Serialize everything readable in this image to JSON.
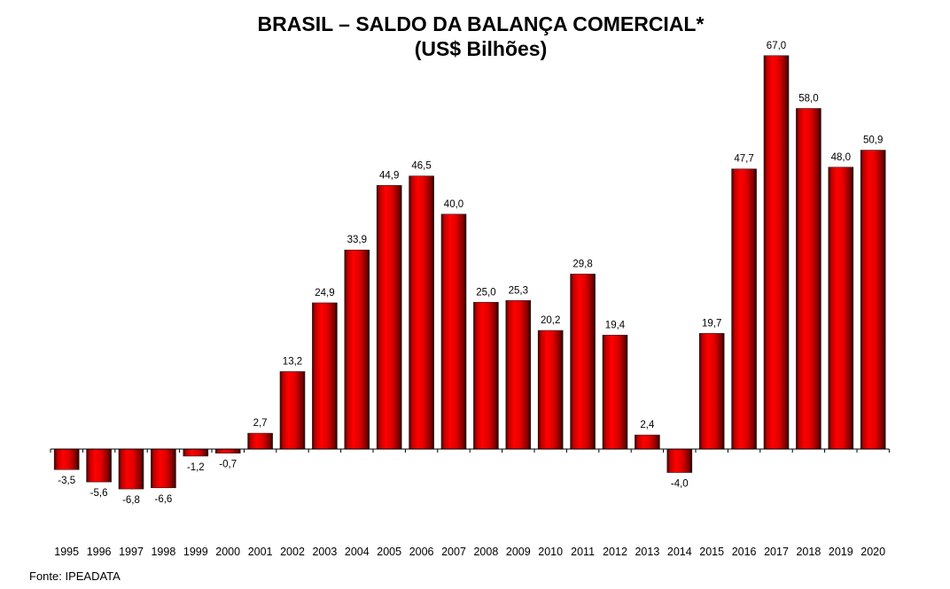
{
  "chart_data": {
    "type": "bar",
    "title": "BRASIL – SALDO DA BALANÇA COMERCIAL*",
    "subtitle": "(US$ Bilhões)",
    "source": "Fonte: IPEADATA",
    "categories": [
      "1995",
      "1996",
      "1997",
      "1998",
      "1999",
      "2000",
      "2001",
      "2002",
      "2003",
      "2004",
      "2005",
      "2006",
      "2007",
      "2008",
      "2009",
      "2010",
      "2011",
      "2012",
      "2013",
      "2014",
      "2015",
      "2016",
      "2017",
      "2018",
      "2019",
      "2020"
    ],
    "values": [
      -3.5,
      -5.6,
      -6.8,
      -6.6,
      -1.2,
      -0.7,
      2.7,
      13.2,
      24.9,
      33.9,
      44.9,
      46.5,
      40.0,
      25.0,
      25.3,
      20.2,
      29.8,
      19.4,
      2.4,
      -4.0,
      19.7,
      47.7,
      67.0,
      58.0,
      48.0,
      50.9
    ],
    "data_labels": [
      "-3,5",
      "-5,6",
      "-6,8",
      "-6,6",
      "-1,2",
      "-0,7",
      "2,7",
      "13,2",
      "24,9",
      "33,9",
      "44,9",
      "46,5",
      "40,0",
      "25,0",
      "25,3",
      "20,2",
      "29,8",
      "19,4",
      "2,4",
      "-4,0",
      "19,7",
      "47,7",
      "67,0",
      "58,0",
      "48,0",
      "50,9"
    ],
    "bar_color": "#ff0000",
    "grid": false,
    "legend": "none"
  }
}
